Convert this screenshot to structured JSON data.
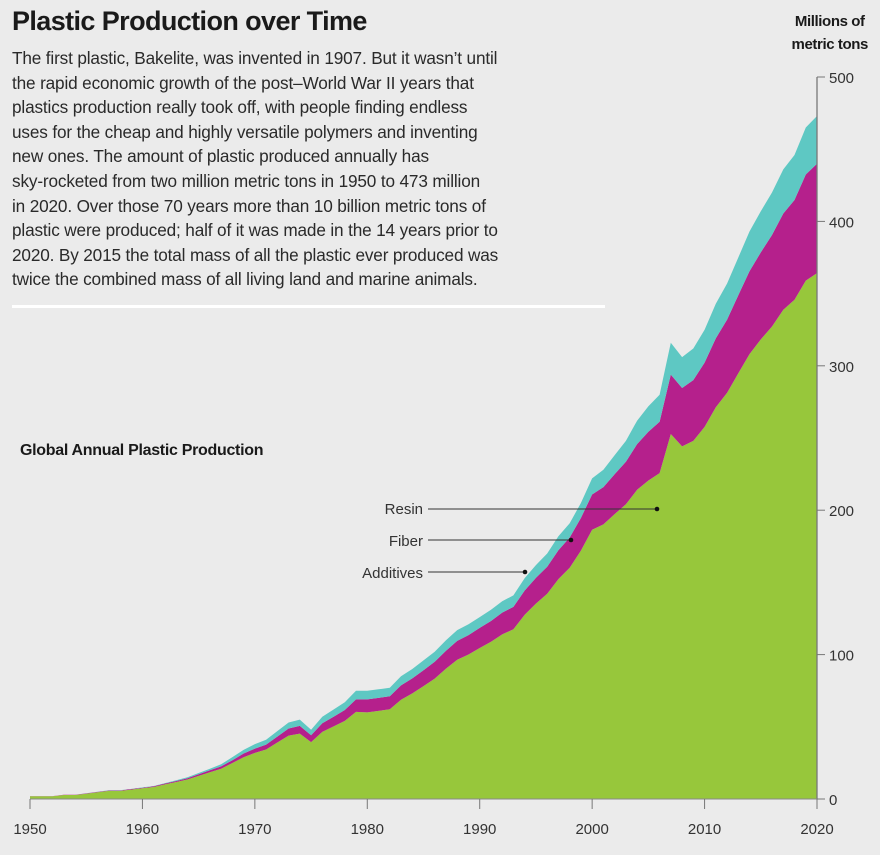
{
  "title": "Plastic Production over Time",
  "body_lines": [
    "The first plastic, Bakelite, was invented in 1907. But it wasn’t until",
    "the rapid economic growth of the post–World War II years that",
    "plastics production really took off, with people finding endless",
    "uses for the cheap and highly versatile polymers and inventing",
    "new ones. The amount of plastic produced annually has",
    "sky-rocketed from two million metric tons in 1950 to 473 million",
    "in 2020. Over those 70 years more than 10 billion metric tons of",
    "plastic were produced; half of it was made in the 14 years prior to",
    "2020. By 2015 the total mass of all the plastic ever produced was",
    "twice the combined mass of all living land and marine animals."
  ],
  "chart_data": {
    "type": "area",
    "stacked": true,
    "title": "Global Annual Plastic Production",
    "ylabel_lines": [
      "Millions of",
      "metric tons"
    ],
    "xlim": [
      1950,
      2020
    ],
    "ylim": [
      0,
      500
    ],
    "xticks": [
      1950,
      1960,
      1970,
      1980,
      1990,
      2000,
      2010,
      2020
    ],
    "yticks": [
      0,
      100,
      200,
      300,
      400,
      500
    ],
    "grid": false,
    "legend": "inline-annotations",
    "x": [
      1950,
      1951,
      1952,
      1953,
      1954,
      1955,
      1956,
      1957,
      1958,
      1959,
      1960,
      1961,
      1962,
      1963,
      1964,
      1965,
      1966,
      1967,
      1968,
      1969,
      1970,
      1971,
      1972,
      1973,
      1974,
      1975,
      1976,
      1977,
      1978,
      1979,
      1980,
      1981,
      1982,
      1983,
      1984,
      1985,
      1986,
      1987,
      1988,
      1989,
      1990,
      1991,
      1992,
      1993,
      1994,
      1995,
      1996,
      1997,
      1998,
      1999,
      2000,
      2001,
      2002,
      2003,
      2004,
      2005,
      2006,
      2007,
      2008,
      2009,
      2010,
      2011,
      2012,
      2013,
      2014,
      2015,
      2016,
      2017,
      2018,
      2019,
      2020
    ],
    "series": [
      {
        "name": "Resin",
        "color": "#97c73b",
        "values": [
          1.9,
          1.9,
          1.9,
          2.8,
          2.8,
          3.7,
          4.7,
          5.6,
          5.6,
          6.5,
          7.5,
          8.3,
          10.1,
          11.8,
          13.5,
          16.0,
          18.5,
          20.9,
          24.9,
          28.9,
          31.9,
          34.3,
          39.1,
          43.9,
          45.3,
          39.4,
          46.5,
          50.3,
          54.1,
          60.3,
          60.0,
          61.0,
          62.1,
          68.8,
          73.1,
          78.2,
          83.4,
          90.3,
          96.4,
          100.1,
          104.6,
          108.9,
          114.0,
          117.5,
          127.6,
          135.3,
          142.1,
          152.3,
          160.1,
          172.0,
          186.5,
          190.2,
          197.3,
          204.1,
          214.1,
          220.6,
          225.7,
          252.8,
          244.2,
          248.0,
          257.7,
          271.3,
          281.3,
          294.8,
          308.1,
          318.3,
          327.2,
          338.8,
          345.7,
          359.0,
          364.2
        ]
      },
      {
        "name": "Fiber",
        "color": "#b5208c",
        "values": [
          0.1,
          0.1,
          0.1,
          0.1,
          0.1,
          0.2,
          0.2,
          0.3,
          0.3,
          0.4,
          0.3,
          0.5,
          0.6,
          0.7,
          0.9,
          1.1,
          1.4,
          1.7,
          2.0,
          2.6,
          3.0,
          3.4,
          4.1,
          4.9,
          5.3,
          4.8,
          5.9,
          6.7,
          7.5,
          8.7,
          9.0,
          9.0,
          9.1,
          9.9,
          10.4,
          11.0,
          11.6,
          12.4,
          13.1,
          13.4,
          13.9,
          14.4,
          15.1,
          15.5,
          16.8,
          17.8,
          18.7,
          20.0,
          21.0,
          22.6,
          24.4,
          25.8,
          27.6,
          29.5,
          31.7,
          33.7,
          35.6,
          41.1,
          40.4,
          42.1,
          44.5,
          47.7,
          50.7,
          54.0,
          57.4,
          60.2,
          63.4,
          66.7,
          69.1,
          73.5,
          75.7
        ]
      },
      {
        "name": "Additives",
        "color": "#5ec8c3",
        "values": [
          0,
          0,
          0,
          0.1,
          0.1,
          0.1,
          0.1,
          0.1,
          0.1,
          0.1,
          0.2,
          0.2,
          0.3,
          0.5,
          0.6,
          0.9,
          1.1,
          1.4,
          2.1,
          2.5,
          3.1,
          3.3,
          3.8,
          4.2,
          4.4,
          3.8,
          4.6,
          5.0,
          5.4,
          6.0,
          6.0,
          6.0,
          5.8,
          6.3,
          6.5,
          6.8,
          7.0,
          7.3,
          7.5,
          7.5,
          7.5,
          7.7,
          7.9,
          8.0,
          8.6,
          8.9,
          9.2,
          9.7,
          9.9,
          10.4,
          11.1,
          12.0,
          13.1,
          14.4,
          16.2,
          17.7,
          18.7,
          22.1,
          21.4,
          21.9,
          22.8,
          24.0,
          25.0,
          26.2,
          27.5,
          28.5,
          29.4,
          30.5,
          31.2,
          32.5,
          33.1
        ]
      }
    ],
    "annotations": [
      "Resin",
      "Fiber",
      "Additives"
    ]
  },
  "colors": {
    "background": "#ebebeb",
    "rule": "#ffffff"
  }
}
